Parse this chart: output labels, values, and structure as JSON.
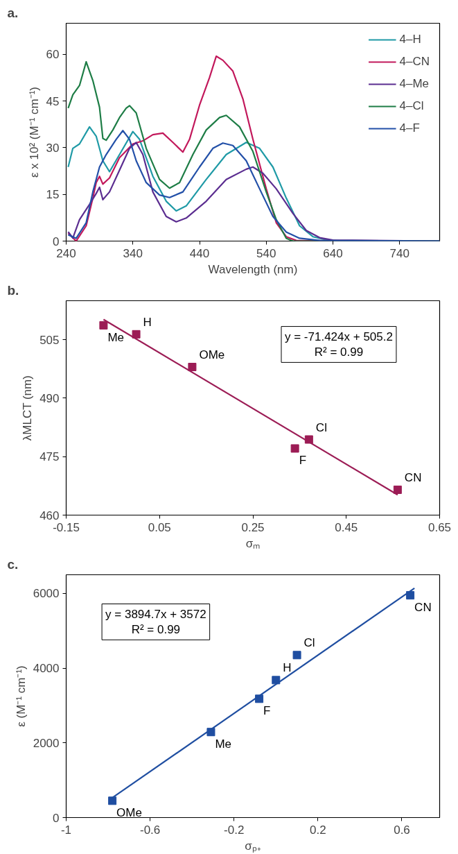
{
  "chart_data": [
    {
      "type": "line",
      "title": "a.",
      "xlabel": "Wavelength (nm)",
      "ylabel": "ε x 10² (M⁻¹ cm⁻¹)",
      "xlim": [
        240,
        800
      ],
      "ylim": [
        0,
        70
      ],
      "xticks": [
        240,
        340,
        440,
        540,
        640,
        740
      ],
      "yticks": [
        0,
        15,
        30,
        45,
        60
      ],
      "grid": false,
      "legend": "top right",
      "line_style": "solid",
      "series": [
        {
          "name": "4–H",
          "color": "#1f9aa6",
          "x": [
            243,
            250,
            260,
            275,
            285,
            295,
            305,
            320,
            340,
            350,
            370,
            390,
            405,
            420,
            450,
            480,
            510,
            530,
            550,
            570,
            590,
            610,
            630,
            650,
            800
          ],
          "values": [
            23.8,
            29.8,
            31.2,
            36.7,
            33.7,
            25.8,
            22.3,
            27.8,
            35.2,
            32.7,
            20.8,
            12.8,
            9.7,
            11.3,
            19.8,
            27.8,
            31.7,
            29.8,
            23.8,
            13.8,
            4.9,
            1.4,
            0.4,
            0.1,
            0
          ]
        },
        {
          "name": "4–CN",
          "color": "#c2185b",
          "x": [
            243,
            255,
            270,
            280,
            285,
            290,
            295,
            305,
            320,
            340,
            355,
            370,
            385,
            400,
            415,
            425,
            440,
            455,
            465,
            475,
            490,
            505,
            520,
            540,
            555,
            570,
            585,
            800
          ],
          "values": [
            2.5,
            0,
            4.9,
            13.8,
            18.8,
            20.8,
            18.3,
            20.3,
            26.8,
            31.2,
            32.2,
            34.2,
            34.7,
            31.7,
            28.6,
            32.7,
            43.7,
            52.6,
            59.4,
            58.1,
            54.6,
            45.7,
            32.7,
            16.8,
            5.9,
            1.4,
            0.2,
            0
          ]
        },
        {
          "name": "4–Me",
          "color": "#5b2d90",
          "x": [
            243,
            250,
            260,
            275,
            285,
            290,
            295,
            305,
            320,
            335,
            345,
            355,
            370,
            390,
            405,
            420,
            450,
            480,
            510,
            520,
            535,
            555,
            580,
            600,
            620,
            640,
            800
          ],
          "values": [
            3,
            1,
            6.9,
            11.8,
            15.3,
            17.3,
            13.3,
            15.8,
            22.8,
            29.8,
            31.7,
            27.8,
            15.8,
            7.9,
            6.2,
            7.4,
            12.8,
            19.8,
            23.1,
            23.8,
            21.8,
            16.8,
            8.9,
            3.4,
            1.1,
            0.3,
            0
          ]
        },
        {
          "name": "4–Cl",
          "color": "#1e7d46",
          "x": [
            243,
            250,
            260,
            270,
            280,
            290,
            295,
            300,
            310,
            320,
            330,
            335,
            345,
            360,
            380,
            395,
            410,
            430,
            450,
            470,
            480,
            500,
            520,
            540,
            555,
            570,
            580,
            800
          ],
          "values": [
            42.7,
            47,
            50,
            57.6,
            51.6,
            43,
            33,
            32.4,
            35.7,
            39.7,
            42.7,
            43.5,
            41.2,
            29.8,
            19.8,
            17,
            18.8,
            27.8,
            35.7,
            39.7,
            40.4,
            36.7,
            28.8,
            15.8,
            6.9,
            0.9,
            0,
            0
          ]
        },
        {
          "name": "4–F",
          "color": "#2350a8",
          "x": [
            243,
            255,
            270,
            280,
            290,
            300,
            315,
            325,
            335,
            345,
            360,
            380,
            395,
            415,
            440,
            460,
            475,
            490,
            510,
            530,
            550,
            570,
            590,
            620,
            800
          ],
          "values": [
            2,
            0.9,
            5.9,
            15.8,
            23.8,
            27.8,
            32.7,
            35.5,
            32.7,
            25.8,
            18.8,
            14.8,
            14.0,
            15.8,
            23.8,
            29.8,
            31.5,
            30.7,
            25.8,
            16.8,
            7.9,
            2.9,
            0.9,
            0.2,
            0
          ]
        }
      ]
    },
    {
      "type": "scatter",
      "title": "b.",
      "xlabel": "σₘ",
      "ylabel": "λMLCT (nm)",
      "xlim": [
        -0.15,
        0.65
      ],
      "ylim": [
        460,
        515
      ],
      "xticks": [
        -0.15,
        0.05,
        0.25,
        0.45,
        0.65
      ],
      "yticks": [
        460,
        475,
        490,
        505
      ],
      "grid": false,
      "series": [
        {
          "type": "scatter",
          "marker": "square",
          "color": "#9c1c55",
          "x": [
            -0.07,
            0.0,
            0.12,
            0.34,
            0.37,
            0.56
          ],
          "values": [
            508.7,
            506.4,
            498.0,
            477.1,
            479.4,
            466.5
          ]
        },
        {
          "type": "line",
          "color": "#9c1c55",
          "x": [
            -0.07,
            0.56
          ],
          "values": [
            510.2,
            465.2
          ]
        }
      ],
      "annotations": [
        {
          "text": "Me",
          "x": -0.07,
          "y": 508.7
        },
        {
          "text": "H",
          "x": 0.0,
          "y": 506.4
        },
        {
          "text": "OMe",
          "x": 0.12,
          "y": 498.0
        },
        {
          "text": "F",
          "x": 0.34,
          "y": 477.1
        },
        {
          "text": "Cl",
          "x": 0.37,
          "y": 479.4
        },
        {
          "text": "CN",
          "x": 0.56,
          "y": 466.5
        },
        "y = -71.424x + 505.2",
        "R² = 0.99"
      ]
    },
    {
      "type": "scatter",
      "title": "c.",
      "xlabel": "σₚ₊",
      "ylabel": "ε (M⁻¹ cm⁻¹)",
      "xlim": [
        -1,
        0.78
      ],
      "ylim": [
        0,
        6500
      ],
      "xticks": [
        -1,
        -0.6,
        -0.2,
        0.2,
        0.6
      ],
      "yticks": [
        0,
        2000,
        4000,
        6000
      ],
      "grid": false,
      "series": [
        {
          "type": "scatter",
          "marker": "square",
          "color": "#1f4ea1",
          "x": [
            -0.78,
            -0.31,
            -0.08,
            0.0,
            0.1,
            0.64
          ],
          "values": [
            450,
            2290,
            3180,
            3680,
            4350,
            5950
          ]
        },
        {
          "type": "line",
          "color": "#1f4ea1",
          "x": [
            -0.78,
            0.66
          ],
          "values": [
            530,
            6140
          ]
        }
      ],
      "annotations": [
        {
          "text": "OMe",
          "x": -0.78,
          "y": 450
        },
        {
          "text": "Me",
          "x": -0.31,
          "y": 2290
        },
        {
          "text": "F",
          "x": -0.08,
          "y": 3180
        },
        {
          "text": "H",
          "x": 0.0,
          "y": 3680
        },
        {
          "text": "Cl",
          "x": 0.1,
          "y": 4350
        },
        {
          "text": "CN",
          "x": 0.64,
          "y": 5950
        },
        "y = 3894.7x + 3572",
        "R² = 0.99"
      ]
    }
  ]
}
